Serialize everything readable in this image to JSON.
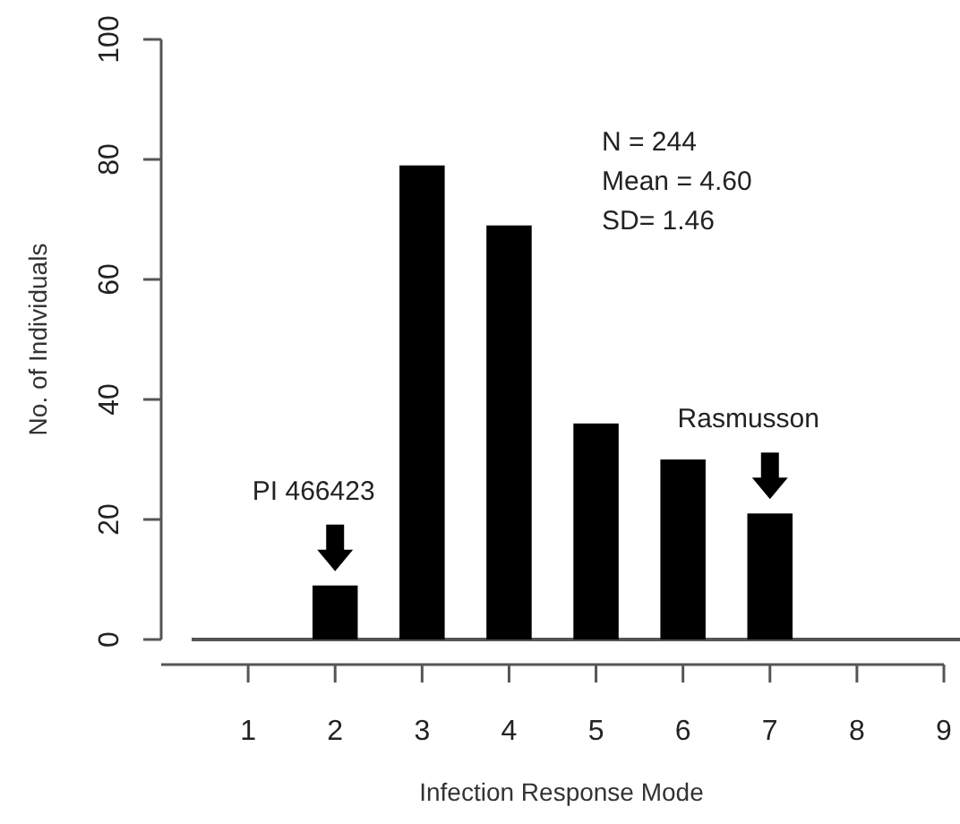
{
  "chart_data": {
    "type": "bar",
    "xlabel": "Infection Response Mode",
    "ylabel": "No. of Individuals",
    "x": [
      1,
      2,
      3,
      4,
      5,
      6,
      7,
      8,
      9
    ],
    "values": [
      0,
      9,
      79,
      69,
      36,
      30,
      21,
      0,
      0
    ],
    "color": "#000000",
    "xlim": [
      0,
      9
    ],
    "xticks": [
      1,
      2,
      3,
      4,
      5,
      6,
      7,
      8,
      9
    ],
    "ylim": [
      0,
      100
    ],
    "yticks": [
      0,
      20,
      40,
      60,
      80,
      100
    ],
    "grid": false,
    "ref_lines": [
      {
        "axis": "y",
        "value": 0,
        "color": "#555555"
      }
    ],
    "annotations": [
      "N = 244",
      "Mean = 4.60",
      "SD= 1.46",
      {
        "text": "PI 466423",
        "x": 2,
        "y": 9
      },
      {
        "text": "Rasmusson",
        "x": 7,
        "y": 21
      }
    ]
  }
}
